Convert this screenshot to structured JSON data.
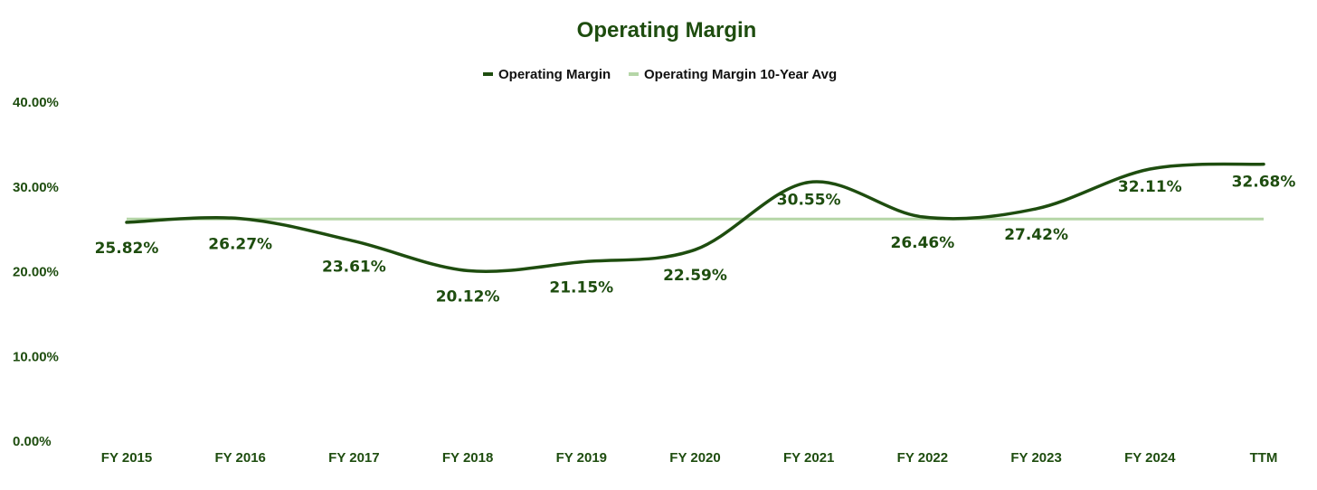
{
  "chart_data": {
    "type": "line",
    "title": "Operating Margin",
    "xlabel": "",
    "ylabel": "",
    "categories": [
      "FY 2015",
      "FY 2016",
      "FY 2017",
      "FY 2018",
      "FY 2019",
      "FY 2020",
      "FY 2021",
      "FY 2022",
      "FY 2023",
      "FY 2024",
      "TTM"
    ],
    "series": [
      {
        "name": "Operating Margin",
        "values": [
          25.82,
          26.27,
          23.61,
          20.12,
          21.15,
          22.59,
          30.55,
          26.46,
          27.42,
          32.11,
          32.68
        ],
        "labels": [
          "25.82%",
          "26.27%",
          "23.61%",
          "20.12%",
          "21.15%",
          "22.59%",
          "30.55%",
          "26.46%",
          "27.42%",
          "32.11%",
          "32.68%"
        ],
        "color": "#1e4d0f"
      },
      {
        "name": "Operating Margin 10-Year Avg",
        "values": [
          26.22,
          26.22,
          26.22,
          26.22,
          26.22,
          26.22,
          26.22,
          26.22,
          26.22,
          26.22,
          26.22
        ],
        "color": "#b5d6a7"
      }
    ],
    "y_ticks": [
      "0.00%",
      "10.00%",
      "20.00%",
      "30.00%",
      "40.00%"
    ],
    "y_tick_values": [
      0,
      10,
      20,
      30,
      40
    ],
    "ylim": [
      0,
      40
    ],
    "grid": false,
    "legend": "top-center",
    "text_color": "#1e4d0f"
  }
}
